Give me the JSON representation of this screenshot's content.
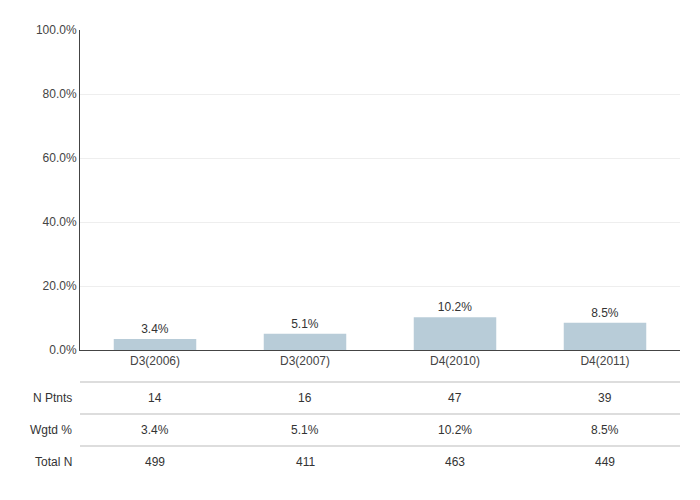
{
  "chart_data": {
    "type": "bar",
    "categories": [
      "D3(2006)",
      "D3(2007)",
      "D4(2010)",
      "D4(2011)"
    ],
    "values": [
      3.4,
      5.1,
      10.2,
      8.5
    ],
    "value_labels": [
      "3.4%",
      "5.1%",
      "10.2%",
      "8.5%"
    ],
    "data_labels": true,
    "color": "#b8ccd8",
    "ylim": [
      0,
      100
    ],
    "yticks": [
      {
        "value": 0,
        "label": "0.0%"
      },
      {
        "value": 20,
        "label": "20.0%"
      },
      {
        "value": 40,
        "label": "40.0%"
      },
      {
        "value": 60,
        "label": "60.0%"
      },
      {
        "value": 80,
        "label": "80.0%"
      },
      {
        "value": 100,
        "label": "100.0%"
      }
    ],
    "grid": true,
    "table": [
      {
        "label": "N Ptnts",
        "cells": [
          "14",
          "16",
          "47",
          "39"
        ]
      },
      {
        "label": "Wgtd %",
        "cells": [
          "3.4%",
          "5.1%",
          "10.2%",
          "8.5%"
        ]
      },
      {
        "label": "Total N",
        "cells": [
          "499",
          "411",
          "463",
          "449"
        ]
      }
    ]
  }
}
